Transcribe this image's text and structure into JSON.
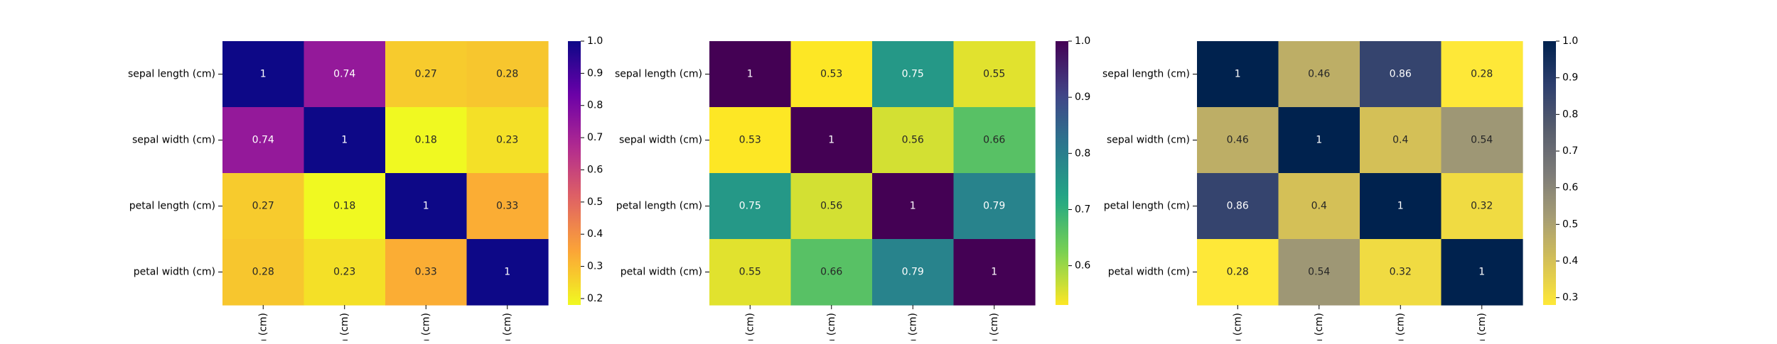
{
  "chart_data": [
    {
      "type": "heatmap",
      "colormap": "plasma_r",
      "colormap_stops": [
        "#f0f921",
        "#fca636",
        "#e16462",
        "#b12a90",
        "#6a00a8",
        "#0d0887"
      ],
      "row_labels": [
        "sepal length (cm)",
        "sepal width (cm)",
        "petal length (cm)",
        "petal width (cm)"
      ],
      "col_labels": [
        "n (cm)",
        "n (cm)",
        "n (cm)",
        "n (cm)"
      ],
      "values": [
        [
          1,
          0.74,
          0.27,
          0.28
        ],
        [
          0.74,
          1,
          0.18,
          0.23
        ],
        [
          0.27,
          0.18,
          1,
          0.33
        ],
        [
          0.28,
          0.23,
          0.33,
          1
        ]
      ],
      "cell_labels": [
        [
          "1",
          "0.74",
          "0.27",
          "0.28"
        ],
        [
          "0.74",
          "1",
          "0.18",
          "0.23"
        ],
        [
          "0.27",
          "0.18",
          "1",
          "0.33"
        ],
        [
          "0.28",
          "0.23",
          "0.33",
          "1"
        ]
      ],
      "colorbar": {
        "min": 0.18,
        "max": 1,
        "ticks": [
          0.2,
          0.3,
          0.4,
          0.5,
          0.6,
          0.7,
          0.8,
          0.9,
          1.0
        ],
        "tick_labels": [
          "0.2",
          "0.3",
          "0.4",
          "0.5",
          "0.6",
          "0.7",
          "0.8",
          "0.9",
          "1.0"
        ]
      }
    },
    {
      "type": "heatmap",
      "colormap": "viridis_r",
      "colormap_stops": [
        "#fde725",
        "#7ad151",
        "#22a884",
        "#2a788e",
        "#414487",
        "#440154"
      ],
      "row_labels": [
        "sepal length (cm)",
        "sepal width (cm)",
        "petal length (cm)",
        "petal width (cm)"
      ],
      "col_labels": [
        "n (cm)",
        "n (cm)",
        "n (cm)",
        "n (cm)"
      ],
      "values": [
        [
          1,
          0.53,
          0.75,
          0.55
        ],
        [
          0.53,
          1,
          0.56,
          0.66
        ],
        [
          0.75,
          0.56,
          1,
          0.79
        ],
        [
          0.55,
          0.66,
          0.79,
          1
        ]
      ],
      "cell_labels": [
        [
          "1",
          "0.53",
          "0.75",
          "0.55"
        ],
        [
          "0.53",
          "1",
          "0.56",
          "0.66"
        ],
        [
          "0.75",
          "0.56",
          "1",
          "0.79"
        ],
        [
          "0.55",
          "0.66",
          "0.79",
          "1"
        ]
      ],
      "colorbar": {
        "min": 0.53,
        "max": 1,
        "ticks": [
          0.6,
          0.7,
          0.8,
          0.9,
          1.0
        ],
        "tick_labels": [
          "0.6",
          "0.7",
          "0.8",
          "0.9",
          "1.0"
        ]
      }
    },
    {
      "type": "heatmap",
      "colormap": "cividis_r",
      "colormap_stops": [
        "#fee838",
        "#d4c057",
        "#a59c74",
        "#7c7b78",
        "#575d6d",
        "#2e3f6e",
        "#00224e"
      ],
      "row_labels": [
        "sepal length (cm)",
        "sepal width (cm)",
        "petal length (cm)",
        "petal width (cm)"
      ],
      "col_labels": [
        "n (cm)",
        "n (cm)",
        "n (cm)",
        "n (cm)"
      ],
      "values": [
        [
          1,
          0.46,
          0.86,
          0.28
        ],
        [
          0.46,
          1,
          0.4,
          0.54
        ],
        [
          0.86,
          0.4,
          1,
          0.32
        ],
        [
          0.28,
          0.54,
          0.32,
          1
        ]
      ],
      "cell_labels": [
        [
          "1",
          "0.46",
          "0.86",
          "0.28"
        ],
        [
          "0.46",
          "1",
          "0.4",
          "0.54"
        ],
        [
          "0.86",
          "0.4",
          "1",
          "0.32"
        ],
        [
          "0.28",
          "0.54",
          "0.32",
          "1"
        ]
      ],
      "colorbar": {
        "min": 0.28,
        "max": 1,
        "ticks": [
          0.3,
          0.4,
          0.5,
          0.6,
          0.7,
          0.8,
          0.9,
          1.0
        ],
        "tick_labels": [
          "0.3",
          "0.4",
          "0.5",
          "0.6",
          "0.7",
          "0.8",
          "0.9",
          "1.0"
        ]
      }
    }
  ]
}
